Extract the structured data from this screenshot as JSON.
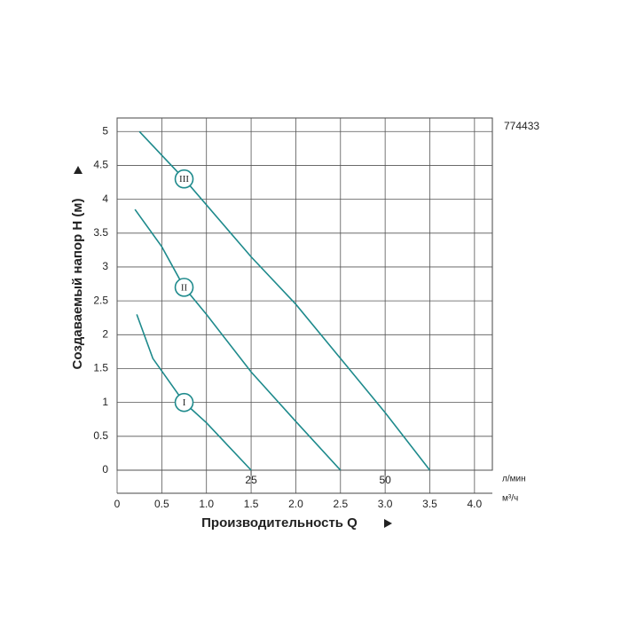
{
  "chart_data": {
    "type": "line",
    "id_label": "774433",
    "y_label": "Создаваемый напор H (м)",
    "x_label": "Производительность Q",
    "x_unit": "м³/ч",
    "x2_unit": "л/мин",
    "xlim": [
      0,
      4.2
    ],
    "ylim": [
      0,
      5.2
    ],
    "x2lim": [
      0,
      70
    ],
    "xticks": [
      0,
      0.5,
      {
        "value": 1,
        "label": "1.0"
      },
      1.5,
      {
        "value": 2,
        "label": "2.0"
      },
      2.5,
      {
        "value": 3,
        "label": "3.0"
      },
      3.5,
      {
        "value": 4,
        "label": "4.0"
      }
    ],
    "yticks": [
      0,
      0.5,
      1,
      1.5,
      2,
      2.5,
      3,
      3.5,
      4,
      4.5,
      5
    ],
    "x2ticks": [
      25,
      50
    ],
    "grid": true,
    "series": [
      {
        "name": "I",
        "color": "#1e8a8c",
        "x": [
          0.22,
          0.4,
          0.75,
          1.0,
          1.25,
          1.5
        ],
        "values": [
          2.3,
          1.65,
          1.0,
          0.7,
          0.35,
          0
        ]
      },
      {
        "name": "II",
        "color": "#1e8a8c",
        "x": [
          0.2,
          0.5,
          0.75,
          1.0,
          1.5,
          2.0,
          2.5
        ],
        "values": [
          3.85,
          3.3,
          2.7,
          2.3,
          1.45,
          0.72,
          0
        ]
      },
      {
        "name": "III",
        "color": "#1e8a8c",
        "x": [
          0.25,
          0.75,
          1.5,
          2.0,
          2.5,
          3.0,
          3.5
        ],
        "values": [
          5.0,
          4.3,
          3.15,
          2.45,
          1.65,
          0.85,
          0
        ]
      }
    ]
  }
}
